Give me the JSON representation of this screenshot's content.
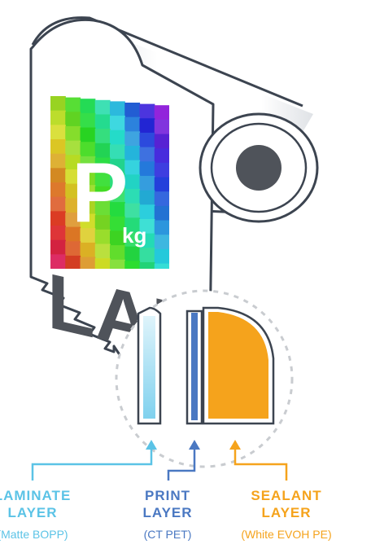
{
  "logo": {
    "mark_text": "P",
    "sub_text": "kg",
    "word_text": "LAB"
  },
  "colors": {
    "outline": "#3c4450",
    "laminate": "#5bc3e6",
    "print": "#4a78c2",
    "sealant": "#f5a31c",
    "core": "#4f535a",
    "dashed": "#c9ccd0"
  },
  "layers": [
    {
      "key": "laminate",
      "title_line1": "LAMINATE",
      "title_line2": "LAYER",
      "material": "(Matte BOPP)"
    },
    {
      "key": "print",
      "title_line1": "PRINT",
      "title_line2": "LAYER",
      "material": "(CT PET)"
    },
    {
      "key": "sealant",
      "title_line1": "SEALANT",
      "title_line2": "LAYER",
      "material": "(White EVOH PE)"
    }
  ]
}
